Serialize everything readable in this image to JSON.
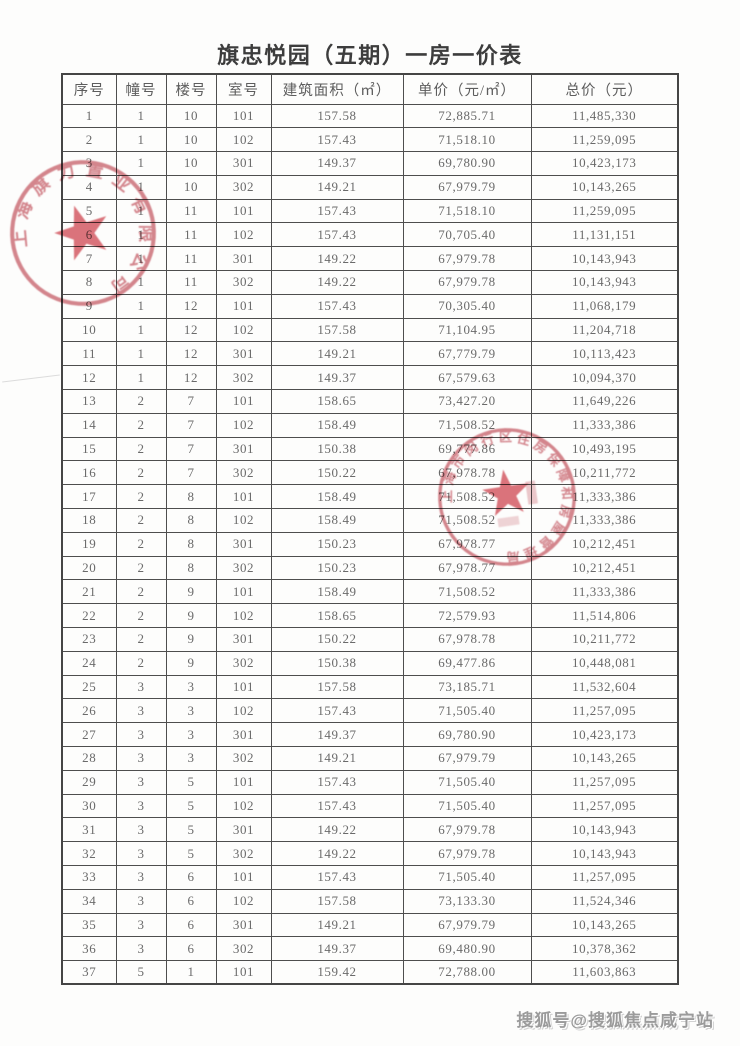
{
  "page": {
    "title": "旗忠悦园（五期）一房一价表"
  },
  "table": {
    "headers": [
      "序号",
      "幢号",
      "楼号",
      "室号",
      "建筑面积（㎡）",
      "单价（元/㎡）",
      "总价（元）"
    ],
    "rows": [
      [
        "1",
        "1",
        "10",
        "101",
        "157.58",
        "72,885.71",
        "11,485,330"
      ],
      [
        "2",
        "1",
        "10",
        "102",
        "157.43",
        "71,518.10",
        "11,259,095"
      ],
      [
        "3",
        "1",
        "10",
        "301",
        "149.37",
        "69,780.90",
        "10,423,173"
      ],
      [
        "4",
        "1",
        "10",
        "302",
        "149.21",
        "67,979.79",
        "10,143,265"
      ],
      [
        "5",
        "1",
        "11",
        "101",
        "157.43",
        "71,518.10",
        "11,259,095"
      ],
      [
        "6",
        "1",
        "11",
        "102",
        "157.43",
        "70,705.40",
        "11,131,151"
      ],
      [
        "7",
        "1",
        "11",
        "301",
        "149.22",
        "67,979.78",
        "10,143,943"
      ],
      [
        "8",
        "1",
        "11",
        "302",
        "149.22",
        "67,979.78",
        "10,143,943"
      ],
      [
        "9",
        "1",
        "12",
        "101",
        "157.43",
        "70,305.40",
        "11,068,179"
      ],
      [
        "10",
        "1",
        "12",
        "102",
        "157.58",
        "71,104.95",
        "11,204,718"
      ],
      [
        "11",
        "1",
        "12",
        "301",
        "149.21",
        "67,779.79",
        "10,113,423"
      ],
      [
        "12",
        "1",
        "12",
        "302",
        "149.37",
        "67,579.63",
        "10,094,370"
      ],
      [
        "13",
        "2",
        "7",
        "101",
        "158.65",
        "73,427.20",
        "11,649,226"
      ],
      [
        "14",
        "2",
        "7",
        "102",
        "158.49",
        "71,508.52",
        "11,333,386"
      ],
      [
        "15",
        "2",
        "7",
        "301",
        "150.38",
        "69,777.86",
        "10,493,195"
      ],
      [
        "16",
        "2",
        "7",
        "302",
        "150.22",
        "67,978.78",
        "10,211,772"
      ],
      [
        "17",
        "2",
        "8",
        "101",
        "158.49",
        "71,508.52",
        "11,333,386"
      ],
      [
        "18",
        "2",
        "8",
        "102",
        "158.49",
        "71,508.52",
        "11,333,386"
      ],
      [
        "19",
        "2",
        "8",
        "301",
        "150.23",
        "67,978.77",
        "10,212,451"
      ],
      [
        "20",
        "2",
        "8",
        "302",
        "150.23",
        "67,978.77",
        "10,212,451"
      ],
      [
        "21",
        "2",
        "9",
        "101",
        "158.49",
        "71,508.52",
        "11,333,386"
      ],
      [
        "22",
        "2",
        "9",
        "102",
        "158.65",
        "72,579.93",
        "11,514,806"
      ],
      [
        "23",
        "2",
        "9",
        "301",
        "150.22",
        "67,978.78",
        "10,211,772"
      ],
      [
        "24",
        "2",
        "9",
        "302",
        "150.38",
        "69,477.86",
        "10,448,081"
      ],
      [
        "25",
        "3",
        "3",
        "101",
        "157.58",
        "73,185.71",
        "11,532,604"
      ],
      [
        "26",
        "3",
        "3",
        "102",
        "157.43",
        "71,505.40",
        "11,257,095"
      ],
      [
        "27",
        "3",
        "3",
        "301",
        "149.37",
        "69,780.90",
        "10,423,173"
      ],
      [
        "28",
        "3",
        "3",
        "302",
        "149.21",
        "67,979.79",
        "10,143,265"
      ],
      [
        "29",
        "3",
        "5",
        "101",
        "157.43",
        "71,505.40",
        "11,257,095"
      ],
      [
        "30",
        "3",
        "5",
        "102",
        "157.43",
        "71,505.40",
        "11,257,095"
      ],
      [
        "31",
        "3",
        "5",
        "301",
        "149.22",
        "67,979.78",
        "10,143,943"
      ],
      [
        "32",
        "3",
        "5",
        "302",
        "149.22",
        "67,979.78",
        "10,143,943"
      ],
      [
        "33",
        "3",
        "6",
        "101",
        "157.43",
        "71,505.40",
        "11,257,095"
      ],
      [
        "34",
        "3",
        "6",
        "102",
        "157.58",
        "73,133.30",
        "11,524,346"
      ],
      [
        "35",
        "3",
        "6",
        "301",
        "149.21",
        "67,979.79",
        "10,143,265"
      ],
      [
        "36",
        "3",
        "6",
        "302",
        "149.37",
        "69,480.90",
        "10,378,362"
      ],
      [
        "37",
        "5",
        "1",
        "101",
        "159.42",
        "72,788.00",
        "11,603,863"
      ]
    ]
  },
  "stamps": [
    {
      "name": "company-seal",
      "text": "上海旗力置业有限公司",
      "color": "#cc6b75"
    },
    {
      "name": "housing-bureau-seal",
      "text": "上海市闵行区住房保障和房屋管理局",
      "color": "#cc6b75"
    }
  ],
  "watermark": {
    "text": "搜狐号@搜狐焦点咸宁站"
  },
  "colors": {
    "seal_red": "#cc6b75",
    "seal_star": "#d4555f",
    "table_border": "#4e4e4e",
    "text_gray": "#6a6a6a"
  }
}
